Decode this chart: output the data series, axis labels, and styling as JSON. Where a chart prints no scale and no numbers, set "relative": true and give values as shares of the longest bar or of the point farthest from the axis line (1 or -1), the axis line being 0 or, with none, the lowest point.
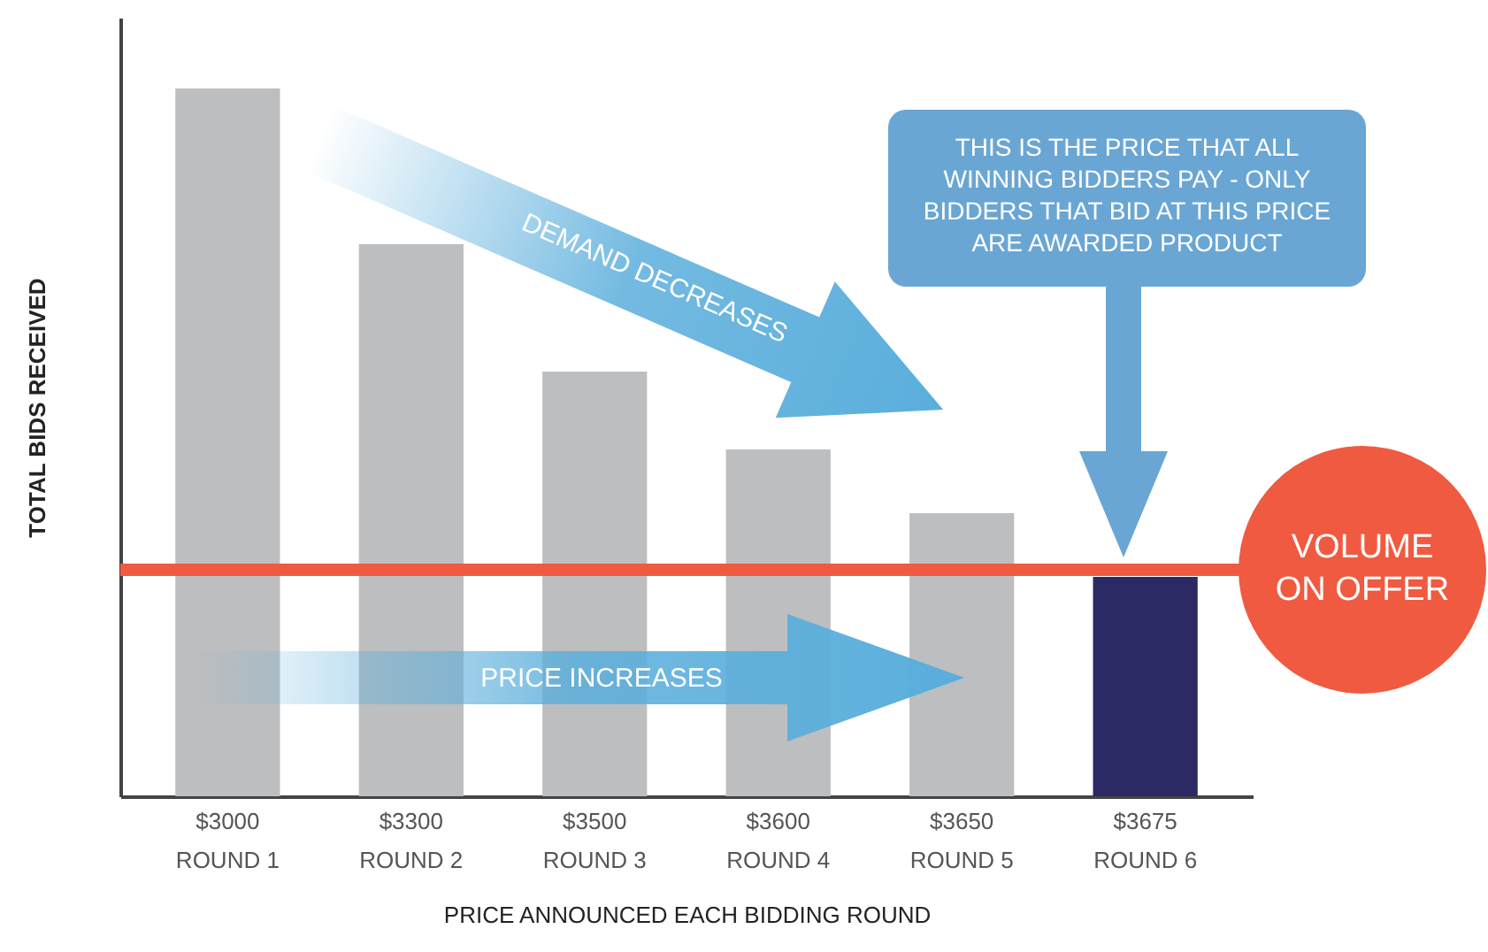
{
  "chart_data": {
    "type": "bar",
    "relative": true,
    "xlabel": "PRICE ANNOUNCED EACH BIDDING ROUND",
    "ylabel": "TOTAL BIDS RECEIVED",
    "categories": [
      "$3000 ROUND 1",
      "$3300 ROUND 2",
      "$3500 ROUND 3",
      "$3600 ROUND 4",
      "$3650 ROUND 5",
      "$3675 ROUND 6"
    ],
    "values": [
      1,
      0.78,
      0.6,
      0.49,
      0.4,
      0.31
    ],
    "colors": [
      "#bcbec0",
      "#bcbec0",
      "#bcbec0",
      "#bcbec0",
      "#bcbec0",
      "#2b2a64"
    ],
    "ref_lines": [
      {
        "axis": "y",
        "value": 0.32,
        "label": "VOLUME ON OFFER",
        "color": "#f05a40"
      }
    ],
    "annotations": [
      "DEMAND DECREASES",
      "PRICE INCREASES",
      "THIS IS THE PRICE THAT ALL WINNING BIDDERS PAY - ONLY BIDDERS THAT BID AT THIS PRICE ARE AWARDED PRODUCT"
    ],
    "orientation": "vertical"
  }
}
